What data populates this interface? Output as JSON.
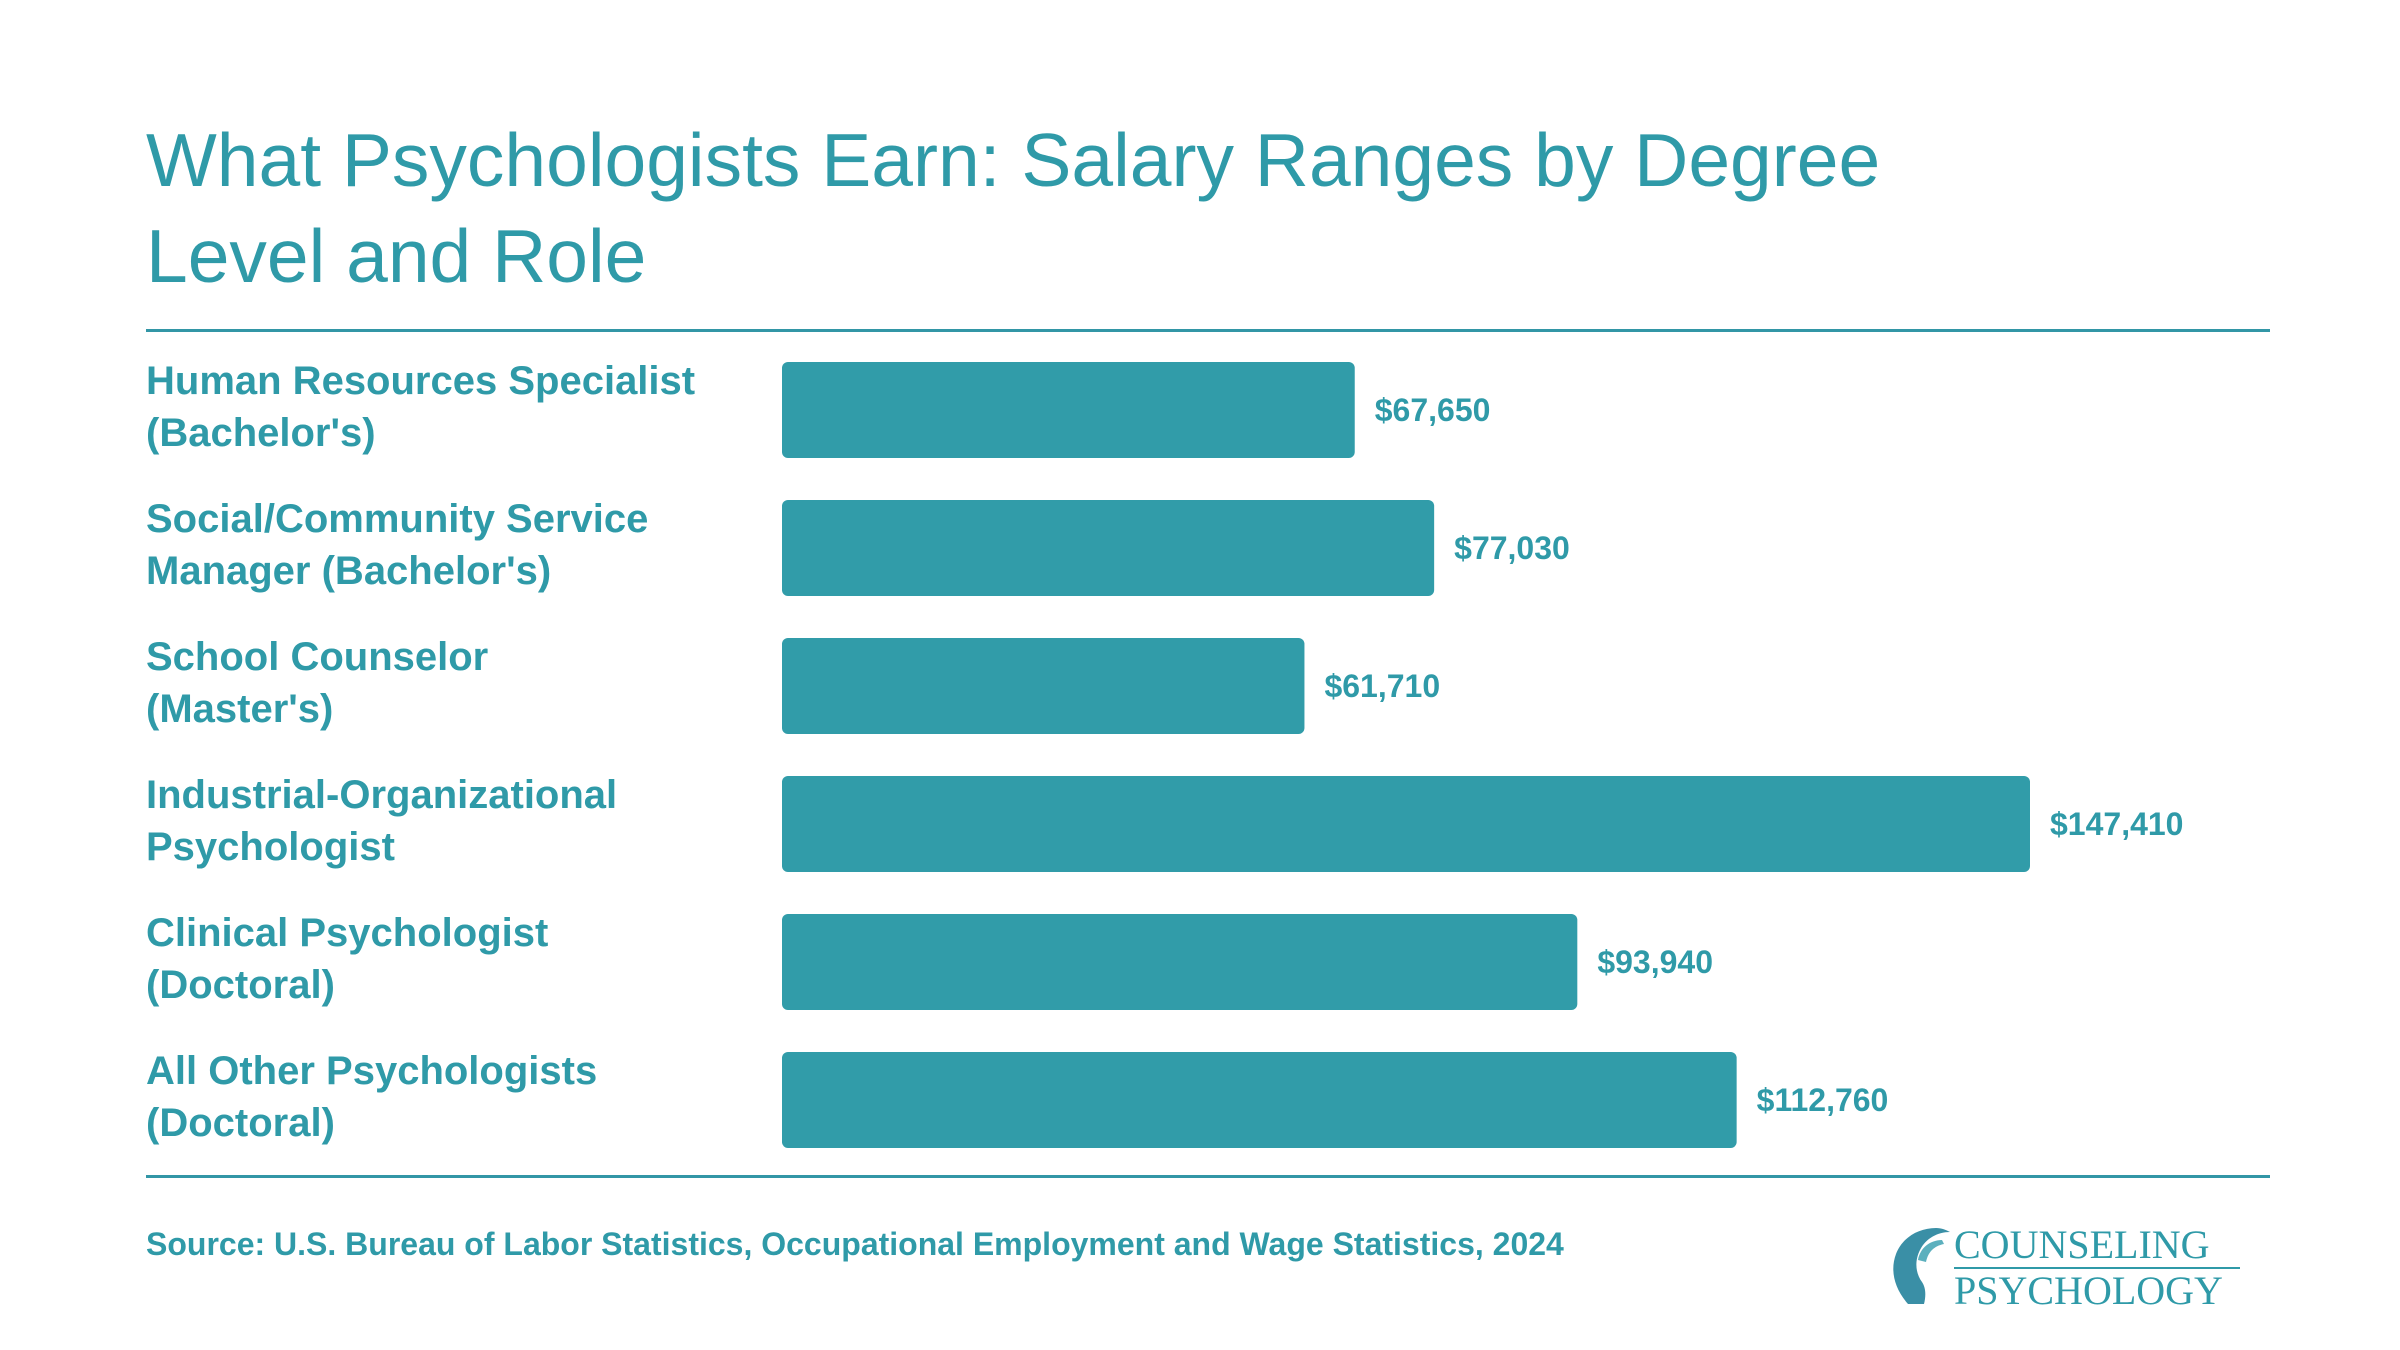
{
  "colors": {
    "accent": "#2f9aa8",
    "bar": "#319ca9",
    "background": "#ffffff"
  },
  "title": "What Psychologists Earn: Salary Ranges by Degree Level and Role",
  "source": "Source: U.S. Bureau of Labor Statistics, Occupational Employment and Wage Statistics, 2024",
  "logo": {
    "line1": "COUNSELING",
    "line2": "PSYCHOLOGY",
    "icon": "head-profile-icon"
  },
  "chart_data": {
    "type": "bar",
    "orientation": "horizontal",
    "title": "What Psychologists Earn: Salary Ranges by Degree Level and Role",
    "xlabel": "",
    "ylabel": "",
    "grid": false,
    "xlim": [
      0,
      170000
    ],
    "categories": [
      [
        "Human Resources Specialist",
        "(Bachelor's)"
      ],
      [
        "Social/Community Service",
        "Manager (Bachelor's)"
      ],
      [
        "School Counselor",
        "(Master's)"
      ],
      [
        "Industrial-Organizational",
        "Psychologist"
      ],
      [
        "Clinical Psychologist",
        "(Doctoral)"
      ],
      [
        "All Other Psychologists",
        "(Doctoral)"
      ]
    ],
    "values": [
      67650,
      77030,
      61710,
      147410,
      93940,
      112760
    ],
    "value_labels": [
      "$67,650",
      "$77,030",
      "$61,710",
      "$147,410",
      "$93,940",
      "$112,760"
    ]
  }
}
